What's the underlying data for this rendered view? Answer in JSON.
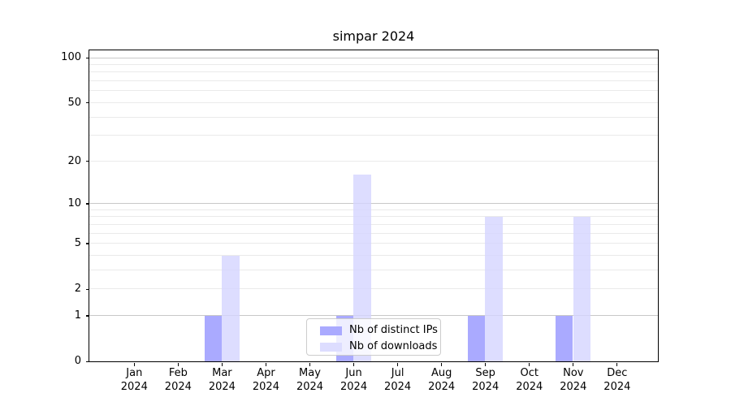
{
  "chart_data": {
    "type": "bar",
    "title": "simpar 2024",
    "categories": [
      "Jan",
      "Feb",
      "Mar",
      "Apr",
      "May",
      "Jun",
      "Jul",
      "Aug",
      "Sep",
      "Oct",
      "Nov",
      "Dec"
    ],
    "years": [
      "2024",
      "2024",
      "2024",
      "2024",
      "2024",
      "2024",
      "2024",
      "2024",
      "2024",
      "2024",
      "2024",
      "2024"
    ],
    "series": [
      {
        "name": "Nb of distinct IPs",
        "color": "#aaaaff",
        "values": [
          0,
          0,
          1,
          0,
          0,
          1,
          0,
          0,
          1,
          0,
          1,
          0
        ]
      },
      {
        "name": "Nb of downloads",
        "color": "#ddddff",
        "values": [
          0,
          0,
          4,
          0,
          0,
          16,
          0,
          0,
          8,
          0,
          8,
          0
        ]
      }
    ],
    "xlabel": "",
    "ylabel": "",
    "yscale": "log1p",
    "ylim": [
      0,
      112
    ],
    "yticks_labeled": [
      0,
      1,
      2,
      5,
      10,
      20,
      50,
      100
    ],
    "yticks_major_grid": [
      1,
      10,
      100
    ],
    "yticks_minor_grid": [
      2,
      3,
      4,
      5,
      6,
      7,
      8,
      9,
      20,
      30,
      40,
      50,
      60,
      70,
      80,
      90
    ],
    "grid": true,
    "legend_position": "lower center",
    "colors": {
      "bar_distinct_ips": "#aaaaff",
      "bar_downloads": "#ddddff",
      "grid_major": "#c8c8c8",
      "grid_minor": "#eaeaea",
      "spine": "#000000",
      "text": "#000000",
      "legend_border": "#cccccc"
    }
  }
}
